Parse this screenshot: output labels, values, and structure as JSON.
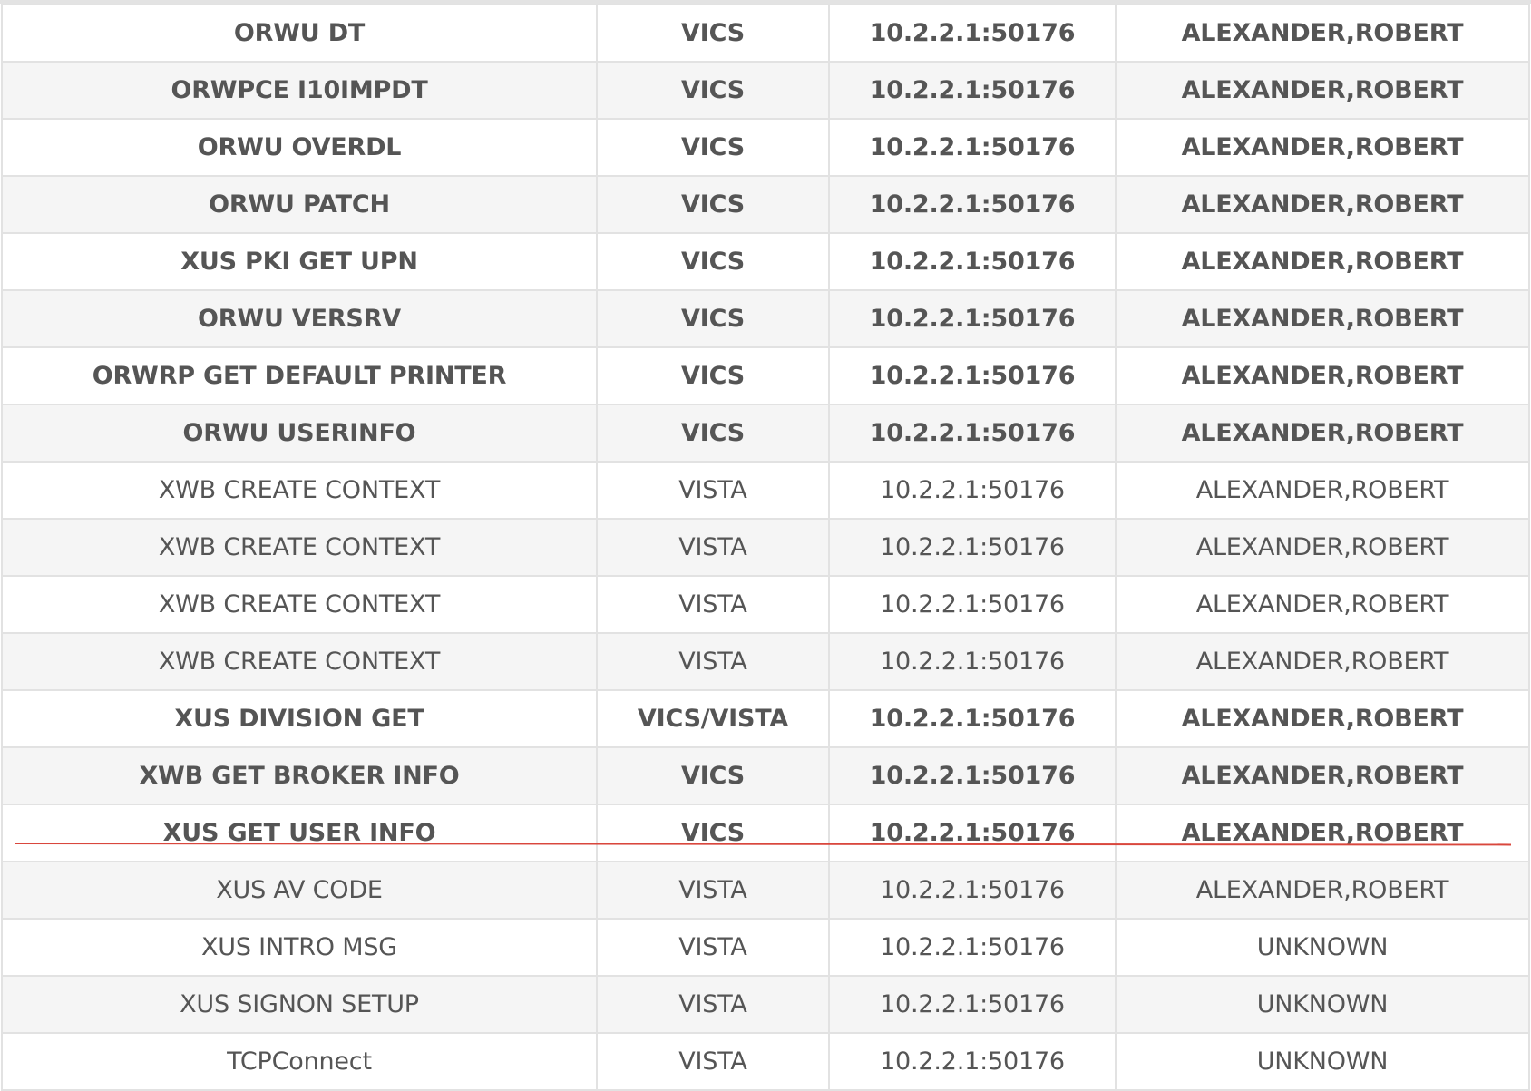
{
  "colors": {
    "row_stripe": "#f5f5f5",
    "row_plain": "#ffffff",
    "border": "#e2e2e2",
    "text": "#555555",
    "marker_line": "#d9473d"
  },
  "rows": [
    {
      "rpc": "ORWU DT",
      "context": "VICS",
      "address": "10.2.2.1:50176",
      "user": "ALEXANDER,ROBERT",
      "bold": true
    },
    {
      "rpc": "ORWPCE I10IMPDT",
      "context": "VICS",
      "address": "10.2.2.1:50176",
      "user": "ALEXANDER,ROBERT",
      "bold": true
    },
    {
      "rpc": "ORWU OVERDL",
      "context": "VICS",
      "address": "10.2.2.1:50176",
      "user": "ALEXANDER,ROBERT",
      "bold": true
    },
    {
      "rpc": "ORWU PATCH",
      "context": "VICS",
      "address": "10.2.2.1:50176",
      "user": "ALEXANDER,ROBERT",
      "bold": true
    },
    {
      "rpc": "XUS PKI GET UPN",
      "context": "VICS",
      "address": "10.2.2.1:50176",
      "user": "ALEXANDER,ROBERT",
      "bold": true
    },
    {
      "rpc": "ORWU VERSRV",
      "context": "VICS",
      "address": "10.2.2.1:50176",
      "user": "ALEXANDER,ROBERT",
      "bold": true
    },
    {
      "rpc": "ORWRP GET DEFAULT PRINTER",
      "context": "VICS",
      "address": "10.2.2.1:50176",
      "user": "ALEXANDER,ROBERT",
      "bold": true
    },
    {
      "rpc": "ORWU USERINFO",
      "context": "VICS",
      "address": "10.2.2.1:50176",
      "user": "ALEXANDER,ROBERT",
      "bold": true
    },
    {
      "rpc": "XWB CREATE CONTEXT",
      "context": "VISTA",
      "address": "10.2.2.1:50176",
      "user": "ALEXANDER,ROBERT",
      "bold": false
    },
    {
      "rpc": "XWB CREATE CONTEXT",
      "context": "VISTA",
      "address": "10.2.2.1:50176",
      "user": "ALEXANDER,ROBERT",
      "bold": false
    },
    {
      "rpc": "XWB CREATE CONTEXT",
      "context": "VISTA",
      "address": "10.2.2.1:50176",
      "user": "ALEXANDER,ROBERT",
      "bold": false
    },
    {
      "rpc": "XWB CREATE CONTEXT",
      "context": "VISTA",
      "address": "10.2.2.1:50176",
      "user": "ALEXANDER,ROBERT",
      "bold": false
    },
    {
      "rpc": "XUS DIVISION GET",
      "context": "VICS/VISTA",
      "address": "10.2.2.1:50176",
      "user": "ALEXANDER,ROBERT",
      "bold": true
    },
    {
      "rpc": "XWB GET BROKER INFO",
      "context": "VICS",
      "address": "10.2.2.1:50176",
      "user": "ALEXANDER,ROBERT",
      "bold": true
    },
    {
      "rpc": "XUS GET USER INFO",
      "context": "VICS",
      "address": "10.2.2.1:50176",
      "user": "ALEXANDER,ROBERT",
      "bold": true
    },
    {
      "rpc": "XUS AV CODE",
      "context": "VISTA",
      "address": "10.2.2.1:50176",
      "user": "ALEXANDER,ROBERT",
      "bold": false
    },
    {
      "rpc": "XUS INTRO MSG",
      "context": "VISTA",
      "address": "10.2.2.1:50176",
      "user": "UNKNOWN",
      "bold": false
    },
    {
      "rpc": "XUS SIGNON SETUP",
      "context": "VISTA",
      "address": "10.2.2.1:50176",
      "user": "UNKNOWN",
      "bold": false
    },
    {
      "rpc": "TCPConnect",
      "context": "VISTA",
      "address": "10.2.2.1:50176",
      "user": "UNKNOWN",
      "bold": false
    }
  ]
}
